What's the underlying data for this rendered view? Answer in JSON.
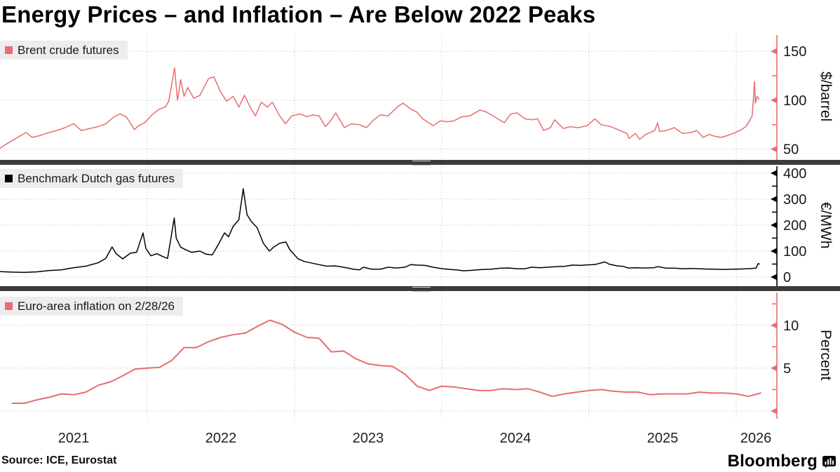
{
  "title": "Energy Prices – and Inflation – Are Below 2022 Peaks",
  "source_note": "Source: ICE, Eurostat",
  "brand": {
    "wordmark": "Bloomberg",
    "icon": "bloomberg-terminal-icon"
  },
  "colors": {
    "salmon_red": "#e76d70",
    "black_series": "#000000",
    "grid": "#c7c7c7",
    "legend_bg": "#ededed",
    "separator": "#3b3b3b",
    "text": "#1a1a1a"
  },
  "x_axis": {
    "year_labels": [
      "2021",
      "2022",
      "2023",
      "2024",
      "2025",
      "2026"
    ],
    "range": [
      "2021-01",
      "2026-03"
    ]
  },
  "chart_data": [
    {
      "type": "line",
      "legend": "Brent crude futures",
      "unit": "$/barrel",
      "color": "#e76d70",
      "axis_color": "#e76d70",
      "ticks": [
        50,
        100,
        150
      ],
      "tick_labels": [
        "50",
        "100",
        "150"
      ],
      "minor_ticks": [
        75,
        125
      ],
      "ylim": [
        39,
        168
      ],
      "point_anchor": "date",
      "points": [
        [
          "2021-01-01",
          51
        ],
        [
          "2021-01-20",
          56
        ],
        [
          "2021-02-10",
          61
        ],
        [
          "2021-03-05",
          67
        ],
        [
          "2021-03-20",
          62
        ],
        [
          "2021-04-10",
          64
        ],
        [
          "2021-05-01",
          67
        ],
        [
          "2021-05-20",
          69
        ],
        [
          "2021-06-10",
          72
        ],
        [
          "2021-07-01",
          76
        ],
        [
          "2021-07-20",
          69
        ],
        [
          "2021-08-10",
          71
        ],
        [
          "2021-09-01",
          73
        ],
        [
          "2021-09-20",
          76
        ],
        [
          "2021-10-10",
          83
        ],
        [
          "2021-10-25",
          86
        ],
        [
          "2021-11-10",
          83
        ],
        [
          "2021-11-30",
          70
        ],
        [
          "2021-12-10",
          74
        ],
        [
          "2021-12-25",
          77
        ],
        [
          "2022-01-15",
          86
        ],
        [
          "2022-02-01",
          91
        ],
        [
          "2022-02-15",
          93
        ],
        [
          "2022-02-24",
          99
        ],
        [
          "2022-03-08",
          133
        ],
        [
          "2022-03-15",
          100
        ],
        [
          "2022-03-23",
          121
        ],
        [
          "2022-04-01",
          104
        ],
        [
          "2022-04-10",
          113
        ],
        [
          "2022-04-25",
          102
        ],
        [
          "2022-05-10",
          105
        ],
        [
          "2022-05-31",
          122
        ],
        [
          "2022-06-14",
          124
        ],
        [
          "2022-06-30",
          109
        ],
        [
          "2022-07-15",
          99
        ],
        [
          "2022-08-01",
          104
        ],
        [
          "2022-08-15",
          93
        ],
        [
          "2022-08-29",
          105
        ],
        [
          "2022-09-15",
          91
        ],
        [
          "2022-09-26",
          84
        ],
        [
          "2022-10-10",
          98
        ],
        [
          "2022-10-25",
          93
        ],
        [
          "2022-11-07",
          98
        ],
        [
          "2022-11-25",
          84
        ],
        [
          "2022-12-09",
          76
        ],
        [
          "2022-12-25",
          84
        ],
        [
          "2023-01-15",
          86
        ],
        [
          "2023-02-01",
          83
        ],
        [
          "2023-02-15",
          85
        ],
        [
          "2023-03-01",
          84
        ],
        [
          "2023-03-17",
          73
        ],
        [
          "2023-04-01",
          80
        ],
        [
          "2023-04-12",
          87
        ],
        [
          "2023-05-03",
          72
        ],
        [
          "2023-05-20",
          76
        ],
        [
          "2023-06-10",
          75
        ],
        [
          "2023-06-27",
          72
        ],
        [
          "2023-07-15",
          80
        ],
        [
          "2023-08-01",
          85
        ],
        [
          "2023-08-20",
          84
        ],
        [
          "2023-09-15",
          94
        ],
        [
          "2023-09-27",
          97
        ],
        [
          "2023-10-15",
          91
        ],
        [
          "2023-10-30",
          88
        ],
        [
          "2023-11-15",
          81
        ],
        [
          "2023-12-10",
          74
        ],
        [
          "2023-12-28",
          79
        ],
        [
          "2024-01-15",
          78
        ],
        [
          "2024-02-01",
          79
        ],
        [
          "2024-02-20",
          83
        ],
        [
          "2024-03-10",
          84
        ],
        [
          "2024-04-05",
          90
        ],
        [
          "2024-04-20",
          88
        ],
        [
          "2024-05-10",
          83
        ],
        [
          "2024-06-04",
          77
        ],
        [
          "2024-06-20",
          86
        ],
        [
          "2024-07-05",
          87
        ],
        [
          "2024-07-25",
          81
        ],
        [
          "2024-08-12",
          80
        ],
        [
          "2024-08-26",
          81
        ],
        [
          "2024-09-10",
          69
        ],
        [
          "2024-09-27",
          72
        ],
        [
          "2024-10-07",
          80
        ],
        [
          "2024-10-29",
          71
        ],
        [
          "2024-11-15",
          73
        ],
        [
          "2024-12-05",
          72
        ],
        [
          "2024-12-27",
          74
        ],
        [
          "2025-01-15",
          81
        ],
        [
          "2025-02-01",
          75
        ],
        [
          "2025-02-25",
          73
        ],
        [
          "2025-03-11",
          70
        ],
        [
          "2025-04-04",
          66
        ],
        [
          "2025-04-09",
          61
        ],
        [
          "2025-04-25",
          66
        ],
        [
          "2025-05-05",
          60
        ],
        [
          "2025-05-20",
          65
        ],
        [
          "2025-06-12",
          69
        ],
        [
          "2025-06-19",
          77
        ],
        [
          "2025-06-24",
          68
        ],
        [
          "2025-07-10",
          69
        ],
        [
          "2025-07-30",
          72
        ],
        [
          "2025-08-20",
          66
        ],
        [
          "2025-09-10",
          67
        ],
        [
          "2025-09-25",
          69
        ],
        [
          "2025-10-10",
          62
        ],
        [
          "2025-10-25",
          65
        ],
        [
          "2025-11-10",
          63
        ],
        [
          "2025-11-25",
          62
        ],
        [
          "2025-12-10",
          64
        ],
        [
          "2025-12-24",
          66
        ],
        [
          "2026-01-10",
          69
        ],
        [
          "2026-01-25",
          73
        ],
        [
          "2026-02-05",
          80
        ],
        [
          "2026-02-10",
          84
        ],
        [
          "2026-02-13",
          100
        ],
        [
          "2026-02-16",
          119
        ],
        [
          "2026-02-18",
          97
        ],
        [
          "2026-02-22",
          104
        ],
        [
          "2026-02-27",
          101
        ]
      ]
    },
    {
      "type": "line",
      "legend": "Benchmark Dutch gas futures",
      "unit": "€/MWh",
      "color": "#000000",
      "axis_color": "#000000",
      "ticks": [
        0,
        100,
        200,
        300,
        400
      ],
      "tick_labels": [
        "0",
        "100",
        "200",
        "300",
        "400"
      ],
      "minor_ticks": [
        50,
        150,
        250,
        350
      ],
      "ylim": [
        -35,
        432
      ],
      "point_anchor": "date",
      "points": [
        [
          "2021-01-01",
          21
        ],
        [
          "2021-02-01",
          19
        ],
        [
          "2021-03-01",
          18
        ],
        [
          "2021-04-01",
          20
        ],
        [
          "2021-05-01",
          25
        ],
        [
          "2021-06-01",
          28
        ],
        [
          "2021-07-01",
          36
        ],
        [
          "2021-08-01",
          42
        ],
        [
          "2021-09-01",
          55
        ],
        [
          "2021-09-20",
          72
        ],
        [
          "2021-10-05",
          116
        ],
        [
          "2021-10-15",
          90
        ],
        [
          "2021-11-01",
          70
        ],
        [
          "2021-11-20",
          92
        ],
        [
          "2021-12-05",
          95
        ],
        [
          "2021-12-21",
          170
        ],
        [
          "2021-12-28",
          110
        ],
        [
          "2022-01-10",
          82
        ],
        [
          "2022-01-25",
          90
        ],
        [
          "2022-02-10",
          78
        ],
        [
          "2022-02-21",
          72
        ],
        [
          "2022-03-07",
          227
        ],
        [
          "2022-03-12",
          150
        ],
        [
          "2022-03-23",
          115
        ],
        [
          "2022-04-05",
          105
        ],
        [
          "2022-04-20",
          95
        ],
        [
          "2022-05-10",
          100
        ],
        [
          "2022-05-25",
          88
        ],
        [
          "2022-06-10",
          85
        ],
        [
          "2022-06-25",
          125
        ],
        [
          "2022-07-10",
          170
        ],
        [
          "2022-07-20",
          155
        ],
        [
          "2022-08-01",
          195
        ],
        [
          "2022-08-15",
          220
        ],
        [
          "2022-08-26",
          340
        ],
        [
          "2022-09-05",
          240
        ],
        [
          "2022-09-15",
          215
        ],
        [
          "2022-09-30",
          190
        ],
        [
          "2022-10-15",
          130
        ],
        [
          "2022-10-30",
          100
        ],
        [
          "2022-11-10",
          115
        ],
        [
          "2022-11-25",
          130
        ],
        [
          "2022-12-10",
          135
        ],
        [
          "2022-12-20",
          105
        ],
        [
          "2023-01-10",
          70
        ],
        [
          "2023-01-25",
          60
        ],
        [
          "2023-02-10",
          55
        ],
        [
          "2023-03-01",
          48
        ],
        [
          "2023-03-20",
          42
        ],
        [
          "2023-04-10",
          43
        ],
        [
          "2023-05-01",
          38
        ],
        [
          "2023-05-25",
          30
        ],
        [
          "2023-06-10",
          28
        ],
        [
          "2023-06-20",
          38
        ],
        [
          "2023-07-10",
          30
        ],
        [
          "2023-08-01",
          30
        ],
        [
          "2023-08-20",
          38
        ],
        [
          "2023-09-10",
          35
        ],
        [
          "2023-10-01",
          38
        ],
        [
          "2023-10-15",
          48
        ],
        [
          "2023-11-01",
          46
        ],
        [
          "2023-11-20",
          45
        ],
        [
          "2023-12-10",
          38
        ],
        [
          "2023-12-28",
          33
        ],
        [
          "2024-01-15",
          30
        ],
        [
          "2024-02-10",
          27
        ],
        [
          "2024-02-25",
          24
        ],
        [
          "2024-03-15",
          26
        ],
        [
          "2024-04-10",
          29
        ],
        [
          "2024-05-01",
          30
        ],
        [
          "2024-05-25",
          34
        ],
        [
          "2024-06-15",
          35
        ],
        [
          "2024-07-05",
          32
        ],
        [
          "2024-07-25",
          32
        ],
        [
          "2024-08-10",
          38
        ],
        [
          "2024-09-01",
          36
        ],
        [
          "2024-09-20",
          38
        ],
        [
          "2024-10-10",
          40
        ],
        [
          "2024-11-01",
          41
        ],
        [
          "2024-11-20",
          46
        ],
        [
          "2024-12-10",
          45
        ],
        [
          "2024-12-28",
          47
        ],
        [
          "2025-01-15",
          48
        ],
        [
          "2025-02-10",
          58
        ],
        [
          "2025-02-20",
          50
        ],
        [
          "2025-03-10",
          43
        ],
        [
          "2025-03-25",
          41
        ],
        [
          "2025-04-07",
          35
        ],
        [
          "2025-04-25",
          36
        ],
        [
          "2025-05-15",
          35
        ],
        [
          "2025-06-10",
          36
        ],
        [
          "2025-06-20",
          40
        ],
        [
          "2025-07-10",
          34
        ],
        [
          "2025-08-01",
          34
        ],
        [
          "2025-08-20",
          32
        ],
        [
          "2025-09-10",
          33
        ],
        [
          "2025-10-01",
          32
        ],
        [
          "2025-10-20",
          31
        ],
        [
          "2025-11-10",
          30
        ],
        [
          "2025-12-01",
          29
        ],
        [
          "2025-12-20",
          30
        ],
        [
          "2026-01-10",
          31
        ],
        [
          "2026-01-25",
          32
        ],
        [
          "2026-02-10",
          33
        ],
        [
          "2026-02-20",
          35
        ],
        [
          "2026-02-25",
          52
        ],
        [
          "2026-02-28",
          50
        ]
      ]
    },
    {
      "type": "line",
      "legend": "Euro-area inflation on 2/28/26",
      "unit": "Percent",
      "color": "#e76d70",
      "axis_color": "#e76d70",
      "ticks": [
        0,
        5,
        10
      ],
      "tick_labels": [
        "",
        "5",
        "10"
      ],
      "minor_ticks": [
        2.5,
        7.5,
        12.5
      ],
      "ylim": [
        -0.9,
        14
      ],
      "point_anchor": "month-end",
      "points": [
        [
          "2021-01",
          0.9
        ],
        [
          "2021-02",
          0.9
        ],
        [
          "2021-03",
          1.3
        ],
        [
          "2021-04",
          1.6
        ],
        [
          "2021-05",
          2.0
        ],
        [
          "2021-06",
          1.9
        ],
        [
          "2021-07",
          2.2
        ],
        [
          "2021-08",
          3.0
        ],
        [
          "2021-09",
          3.4
        ],
        [
          "2021-10",
          4.1
        ],
        [
          "2021-11",
          4.9
        ],
        [
          "2021-12",
          5.0
        ],
        [
          "2022-01",
          5.1
        ],
        [
          "2022-02",
          5.9
        ],
        [
          "2022-03",
          7.4
        ],
        [
          "2022-04",
          7.4
        ],
        [
          "2022-05",
          8.1
        ],
        [
          "2022-06",
          8.6
        ],
        [
          "2022-07",
          8.9
        ],
        [
          "2022-08",
          9.1
        ],
        [
          "2022-09",
          9.9
        ],
        [
          "2022-10",
          10.6
        ],
        [
          "2022-11",
          10.1
        ],
        [
          "2022-12",
          9.2
        ],
        [
          "2023-01",
          8.6
        ],
        [
          "2023-02",
          8.5
        ],
        [
          "2023-03",
          6.9
        ],
        [
          "2023-04",
          7.0
        ],
        [
          "2023-05",
          6.1
        ],
        [
          "2023-06",
          5.5
        ],
        [
          "2023-07",
          5.3
        ],
        [
          "2023-08",
          5.2
        ],
        [
          "2023-09",
          4.3
        ],
        [
          "2023-10",
          2.9
        ],
        [
          "2023-11",
          2.4
        ],
        [
          "2023-12",
          2.9
        ],
        [
          "2024-01",
          2.8
        ],
        [
          "2024-02",
          2.6
        ],
        [
          "2024-03",
          2.4
        ],
        [
          "2024-04",
          2.4
        ],
        [
          "2024-05",
          2.6
        ],
        [
          "2024-06",
          2.5
        ],
        [
          "2024-07",
          2.6
        ],
        [
          "2024-08",
          2.2
        ],
        [
          "2024-09",
          1.7
        ],
        [
          "2024-10",
          2.0
        ],
        [
          "2024-11",
          2.2
        ],
        [
          "2024-12",
          2.4
        ],
        [
          "2025-01",
          2.5
        ],
        [
          "2025-02",
          2.3
        ],
        [
          "2025-03",
          2.2
        ],
        [
          "2025-04",
          2.2
        ],
        [
          "2025-05",
          1.9
        ],
        [
          "2025-06",
          2.0
        ],
        [
          "2025-07",
          2.0
        ],
        [
          "2025-08",
          2.0
        ],
        [
          "2025-09",
          2.2
        ],
        [
          "2025-10",
          2.1
        ],
        [
          "2025-11",
          2.1
        ],
        [
          "2025-12",
          2.0
        ],
        [
          "2026-01",
          1.7
        ],
        [
          "2026-02",
          2.1
        ]
      ]
    }
  ]
}
